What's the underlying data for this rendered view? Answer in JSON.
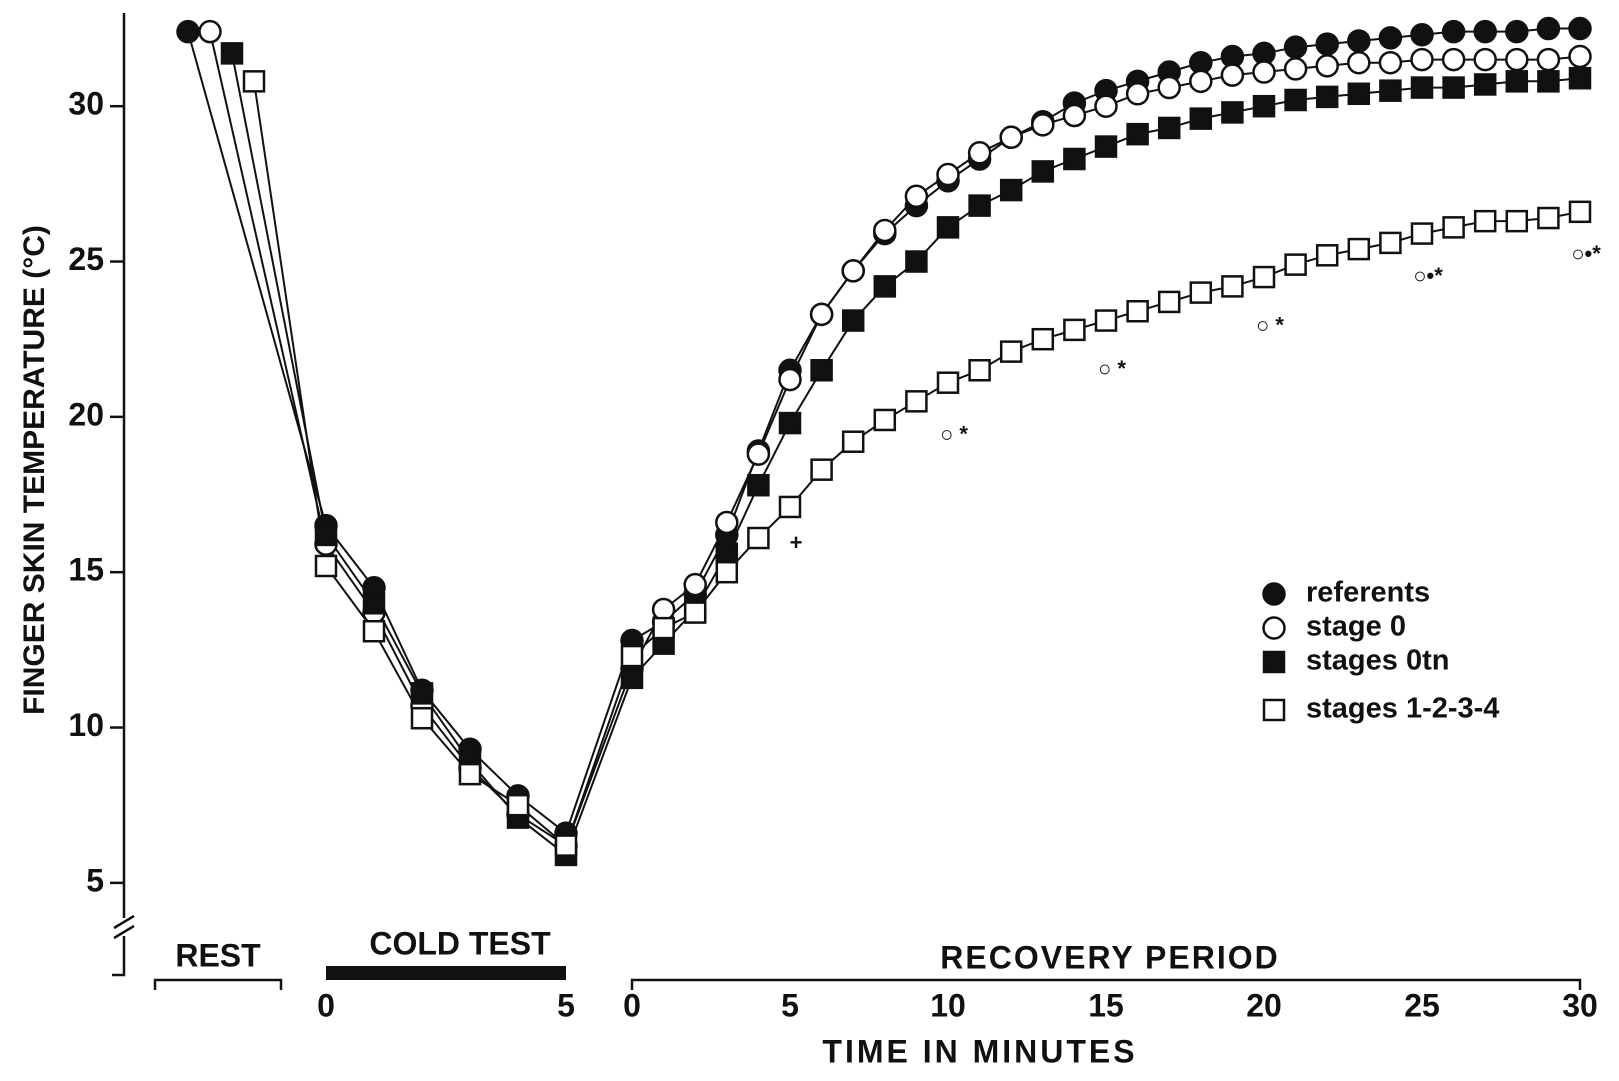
{
  "chart_data": {
    "type": "line",
    "ylabel": "FINGER SKIN TEMPERATURE   (°C)",
    "xlabel": "TIME IN MINUTES",
    "ylim": [
      3,
      33
    ],
    "yticks": [
      5,
      10,
      15,
      20,
      25,
      30
    ],
    "phases": {
      "rest": {
        "label": "REST"
      },
      "cold": {
        "label": "COLD TEST",
        "xlim": [
          0,
          5
        ],
        "xticks": [
          0,
          5
        ],
        "x": [
          0,
          1,
          2,
          3,
          4,
          5
        ]
      },
      "recovery": {
        "label": "RECOVERY PERIOD",
        "xlim": [
          0,
          30
        ],
        "xticks": [
          0,
          5,
          10,
          15,
          20,
          25,
          30
        ],
        "x": [
          0,
          1,
          2,
          3,
          4,
          5,
          6,
          7,
          8,
          9,
          10,
          11,
          12,
          13,
          14,
          15,
          16,
          17,
          18,
          19,
          20,
          21,
          22,
          23,
          24,
          25,
          26,
          27,
          28,
          29,
          30
        ]
      }
    },
    "series": [
      {
        "name": "referents",
        "marker": "circle",
        "filled": true,
        "rest": 32.4,
        "cold": [
          16.5,
          14.5,
          11.2,
          9.3,
          7.8,
          6.6
        ],
        "recovery": [
          12.8,
          13.4,
          14.3,
          16.2,
          18.9,
          21.5,
          23.3,
          24.7,
          25.9,
          26.8,
          27.6,
          28.3,
          29.0,
          29.5,
          30.1,
          30.5,
          30.8,
          31.1,
          31.4,
          31.6,
          31.7,
          31.9,
          32.0,
          32.1,
          32.2,
          32.3,
          32.4,
          32.4,
          32.4,
          32.5,
          32.5
        ]
      },
      {
        "name": "stage 0",
        "marker": "circle",
        "filled": false,
        "rest": 32.4,
        "cold": [
          15.9,
          13.7,
          10.7,
          8.7,
          7.2,
          6.2
        ],
        "recovery": [
          11.9,
          13.8,
          14.6,
          16.6,
          18.8,
          21.2,
          23.3,
          24.7,
          26.0,
          27.1,
          27.8,
          28.5,
          29.0,
          29.4,
          29.7,
          30.0,
          30.4,
          30.6,
          30.8,
          31.0,
          31.1,
          31.2,
          31.3,
          31.4,
          31.4,
          31.5,
          31.5,
          31.5,
          31.5,
          31.5,
          31.6
        ]
      },
      {
        "name": "stages 0tn",
        "marker": "square",
        "filled": true,
        "rest": 31.7,
        "cold": [
          16.2,
          14.0,
          11.1,
          8.9,
          7.1,
          5.9
        ],
        "recovery": [
          11.6,
          12.7,
          13.8,
          15.6,
          17.8,
          19.8,
          21.5,
          23.1,
          24.2,
          25.0,
          26.1,
          26.8,
          27.3,
          27.9,
          28.3,
          28.7,
          29.1,
          29.3,
          29.6,
          29.8,
          30.0,
          30.2,
          30.3,
          30.4,
          30.5,
          30.6,
          30.6,
          30.7,
          30.8,
          30.8,
          30.9
        ]
      },
      {
        "name": "stages 1-2-3-4",
        "marker": "square",
        "filled": false,
        "rest": 30.8,
        "cold": [
          15.2,
          13.1,
          10.3,
          8.5,
          7.5,
          6.2
        ],
        "recovery": [
          12.3,
          13.2,
          13.7,
          15.0,
          16.1,
          17.1,
          18.3,
          19.2,
          19.9,
          20.5,
          21.1,
          21.5,
          22.1,
          22.5,
          22.8,
          23.1,
          23.4,
          23.7,
          24.0,
          24.2,
          24.5,
          24.9,
          25.2,
          25.4,
          25.6,
          25.9,
          26.1,
          26.3,
          26.3,
          26.4,
          26.6
        ]
      }
    ],
    "annotations": [
      {
        "x": 5,
        "y": 15.9,
        "text": "+"
      },
      {
        "x": 10,
        "y": 19.4,
        "text": "○ *"
      },
      {
        "x": 15,
        "y": 21.5,
        "text": "○ *"
      },
      {
        "x": 20,
        "y": 22.9,
        "text": "○ *"
      },
      {
        "x": 25,
        "y": 24.5,
        "text": "○•*"
      },
      {
        "x": 30,
        "y": 25.2,
        "text": "○•*"
      }
    ]
  }
}
